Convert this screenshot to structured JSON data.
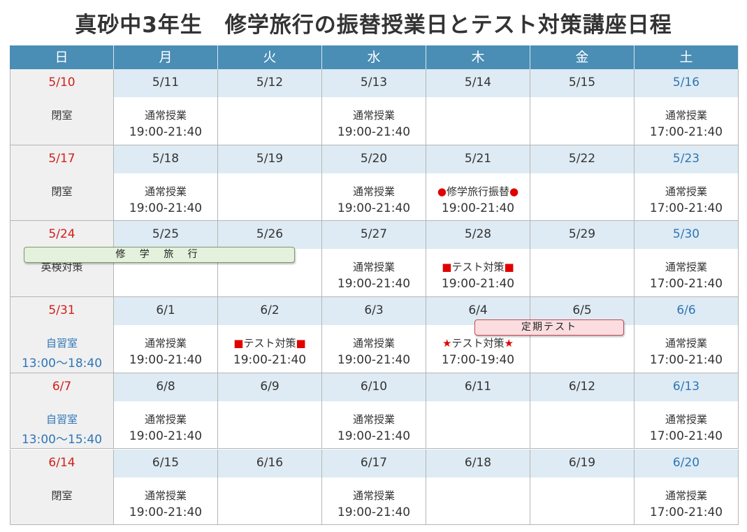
{
  "header": {
    "title": "真砂中3年生　修学旅行の振替授業日とテスト対策講座日程"
  },
  "calendar": {
    "weekdays": [
      "日",
      "月",
      "火",
      "水",
      "木",
      "金",
      "土"
    ],
    "weeks": [
      {
        "days": [
          {
            "date": "5/10",
            "lines": [
              "閉室"
            ]
          },
          {
            "date": "5/11",
            "lines": [
              "通常授業",
              "19:00-21:40"
            ]
          },
          {
            "date": "5/12",
            "lines": []
          },
          {
            "date": "5/13",
            "lines": [
              "通常授業",
              "19:00-21:40"
            ]
          },
          {
            "date": "5/14",
            "lines": []
          },
          {
            "date": "5/15",
            "lines": []
          },
          {
            "date": "5/16",
            "lines": [
              "通常授業",
              "17:00-21:40"
            ]
          }
        ]
      },
      {
        "days": [
          {
            "date": "5/17",
            "lines": [
              "閉室"
            ]
          },
          {
            "date": "5/18",
            "lines": [
              "通常授業",
              "19:00-21:40"
            ]
          },
          {
            "date": "5/19",
            "lines": []
          },
          {
            "date": "5/20",
            "lines": [
              "通常授業",
              "19:00-21:40"
            ]
          },
          {
            "date": "5/21",
            "lines": [
              "●修学旅行振替●",
              "19:00-21:40"
            ]
          },
          {
            "date": "5/22",
            "lines": []
          },
          {
            "date": "5/23",
            "lines": [
              "通常授業",
              "17:00-21:40"
            ]
          }
        ]
      },
      {
        "days": [
          {
            "date": "5/24",
            "lines": [
              "英検対策"
            ]
          },
          {
            "date": "5/25",
            "lines": []
          },
          {
            "date": "5/26",
            "lines": []
          },
          {
            "date": "5/27",
            "lines": [
              "通常授業",
              "19:00-21:40"
            ]
          },
          {
            "date": "5/28",
            "lines": [
              "■テスト対策■",
              "19:00-21:40"
            ]
          },
          {
            "date": "5/29",
            "lines": []
          },
          {
            "date": "5/30",
            "lines": [
              "通常授業",
              "17:00-21:40"
            ]
          }
        ]
      },
      {
        "days": [
          {
            "date": "5/31",
            "lines": [
              "自習室",
              "13:00～18:40"
            ],
            "color": "#2e75b6"
          },
          {
            "date": "6/1",
            "lines": [
              "通常授業",
              "19:00-21:40"
            ]
          },
          {
            "date": "6/2",
            "lines": [
              "■テスト対策■",
              "19:00-21:40"
            ]
          },
          {
            "date": "6/3",
            "lines": [
              "通常授業",
              "19:00-21:40"
            ]
          },
          {
            "date": "6/4",
            "lines": [
              "★テスト対策★",
              "17:00-19:40"
            ]
          },
          {
            "date": "6/5",
            "lines": []
          },
          {
            "date": "6/6",
            "lines": [
              "通常授業",
              "17:00-21:40"
            ]
          }
        ]
      },
      {
        "days": [
          {
            "date": "6/7",
            "lines": [
              "自習室",
              "13:00～15:40"
            ],
            "color": "#2e75b6"
          },
          {
            "date": "6/8",
            "lines": [
              "通常授業",
              "19:00-21:40"
            ]
          },
          {
            "date": "6/9",
            "lines": []
          },
          {
            "date": "6/10",
            "lines": [
              "通常授業",
              "19:00-21:40"
            ]
          },
          {
            "date": "6/11",
            "lines": []
          },
          {
            "date": "6/12",
            "lines": []
          },
          {
            "date": "6/13",
            "lines": [
              "通常授業",
              "17:00-21:40"
            ]
          }
        ]
      },
      {
        "days": [
          {
            "date": "6/14",
            "lines": [
              "閉室"
            ]
          },
          {
            "date": "6/15",
            "lines": [
              "通常授業",
              "19:00-21:40"
            ]
          },
          {
            "date": "6/16",
            "lines": []
          },
          {
            "date": "6/17",
            "lines": [
              "通常授業",
              "19:00-21:40"
            ]
          },
          {
            "date": "6/18",
            "lines": []
          },
          {
            "date": "6/19",
            "lines": []
          },
          {
            "date": "6/20",
            "lines": [
              "通常授業",
              "17:00-21:40"
            ]
          }
        ]
      }
    ]
  },
  "banners": [
    {
      "label": "修 学 旅 行"
    },
    {
      "label": "定期テスト"
    }
  ]
}
